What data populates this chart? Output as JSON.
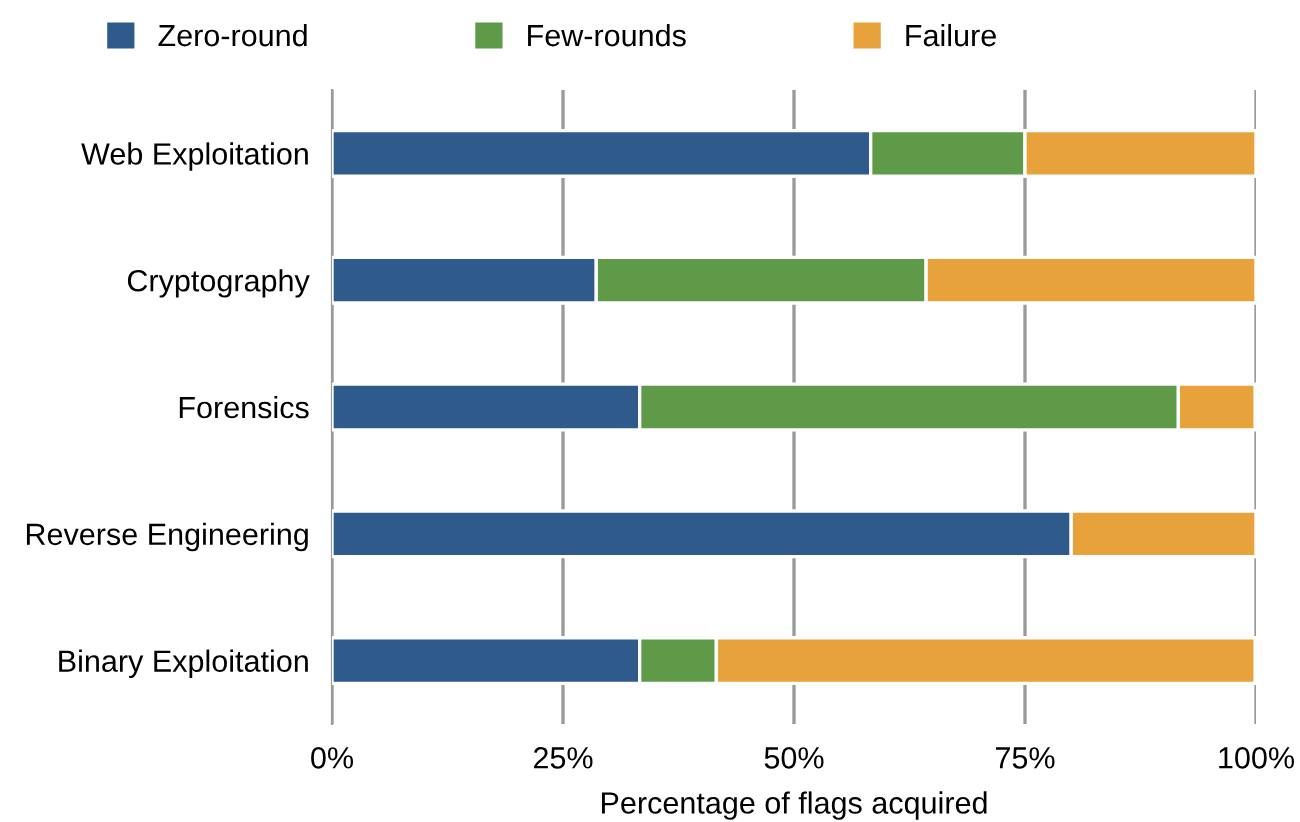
{
  "chart_data": {
    "type": "bar",
    "orientation": "horizontal",
    "stacked": true,
    "xlabel": "Percentage of flags acquired",
    "categories": [
      "Web Exploitation",
      "Cryptography",
      "Forensics",
      "Reverse Engineering",
      "Binary Exploitation"
    ],
    "series": [
      {
        "name": "Zero-round",
        "color": "#2e5a8c",
        "values": [
          58.3,
          28.6,
          33.3,
          80,
          33.3
        ]
      },
      {
        "name": "Few-rounds",
        "color": "#5e9a48",
        "values": [
          16.7,
          35.7,
          58.3,
          0,
          8.3
        ]
      },
      {
        "name": "Failure",
        "color": "#e8a23c",
        "values": [
          25,
          35.7,
          8.3,
          20,
          58.3
        ]
      }
    ],
    "xlim": [
      0,
      100
    ],
    "xticks": [
      {
        "value": 0,
        "label": "0%"
      },
      {
        "value": 25,
        "label": "25%"
      },
      {
        "value": 50,
        "label": "50%"
      },
      {
        "value": 75,
        "label": "75%"
      },
      {
        "value": 100,
        "label": "100%"
      }
    ],
    "grid": "x",
    "legend": "top left"
  }
}
